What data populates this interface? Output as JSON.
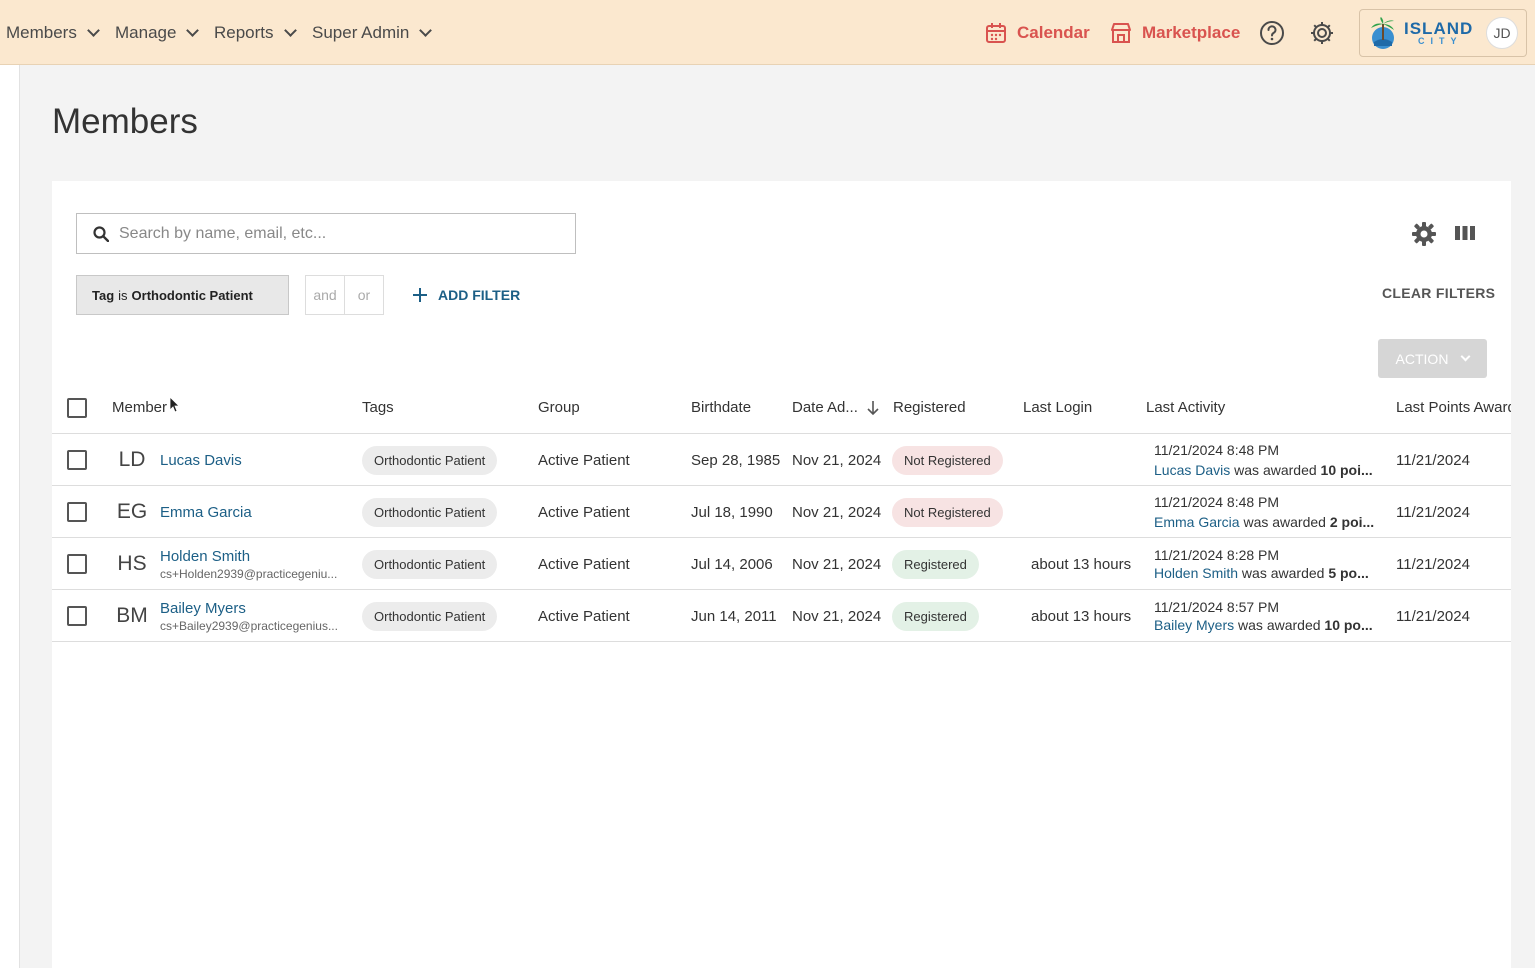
{
  "nav": {
    "items": [
      {
        "label": "Members"
      },
      {
        "label": "Manage"
      },
      {
        "label": "Reports"
      },
      {
        "label": "Super Admin"
      }
    ],
    "calendar_label": "Calendar",
    "marketplace_label": "Marketplace",
    "logo_line1": "ISLAND",
    "logo_line2": "CITY",
    "avatar_initials": "JD",
    "accent_color": "#d9534f"
  },
  "page": {
    "title": "Members"
  },
  "search": {
    "placeholder": "Search by name, email, etc..."
  },
  "filters": {
    "chip_field": "Tag",
    "chip_op": "is",
    "chip_value": "Orthodontic Patient",
    "and_label": "and",
    "or_label": "or",
    "add_filter_label": "ADD FILTER",
    "clear_filters_label": "CLEAR FILTERS"
  },
  "action": {
    "label": "ACTION"
  },
  "table": {
    "headers": {
      "member": "Member",
      "tags": "Tags",
      "group": "Group",
      "birthdate": "Birthdate",
      "date_added": "Date Ad...",
      "registered": "Registered",
      "last_login": "Last Login",
      "last_activity": "Last Activity",
      "last_points": "Last Points Awarde"
    },
    "rows": [
      {
        "initials": "LD",
        "name": "Lucas Davis",
        "email": "",
        "tag": "Orthodontic Patient",
        "group": "Active Patient",
        "birthdate": "Sep 28, 1985",
        "date_added": "Nov 21, 2024",
        "registered": "Not Registered",
        "last_login": "",
        "activity_time": "11/21/2024 8:48 PM",
        "activity_name": "Lucas Davis",
        "activity_text": " was awarded ",
        "activity_bold": "10 poi...",
        "last_points": "11/21/2024"
      },
      {
        "initials": "EG",
        "name": "Emma Garcia",
        "email": "",
        "tag": "Orthodontic Patient",
        "group": "Active Patient",
        "birthdate": "Jul 18, 1990",
        "date_added": "Nov 21, 2024",
        "registered": "Not Registered",
        "last_login": "",
        "activity_time": "11/21/2024 8:48 PM",
        "activity_name": "Emma Garcia",
        "activity_text": " was awarded ",
        "activity_bold": "2 poi...",
        "last_points": "11/21/2024"
      },
      {
        "initials": "HS",
        "name": "Holden Smith",
        "email": "cs+Holden2939@practicegeniu...",
        "tag": "Orthodontic Patient",
        "group": "Active Patient",
        "birthdate": "Jul 14, 2006",
        "date_added": "Nov 21, 2024",
        "registered": "Registered",
        "last_login": "about 13 hours",
        "activity_time": "11/21/2024 8:28 PM",
        "activity_name": "Holden Smith",
        "activity_text": " was awarded ",
        "activity_bold": "5 po...",
        "last_points": "11/21/2024"
      },
      {
        "initials": "BM",
        "name": "Bailey Myers",
        "email": "cs+Bailey2939@practicegenius...",
        "tag": "Orthodontic Patient",
        "group": "Active Patient",
        "birthdate": "Jun 14, 2011",
        "date_added": "Nov 21, 2024",
        "registered": "Registered",
        "last_login": "about 13 hours",
        "activity_time": "11/21/2024 8:57 PM",
        "activity_name": "Bailey Myers",
        "activity_text": " was awarded ",
        "activity_bold": "10 po...",
        "last_points": "11/21/2024"
      }
    ]
  }
}
